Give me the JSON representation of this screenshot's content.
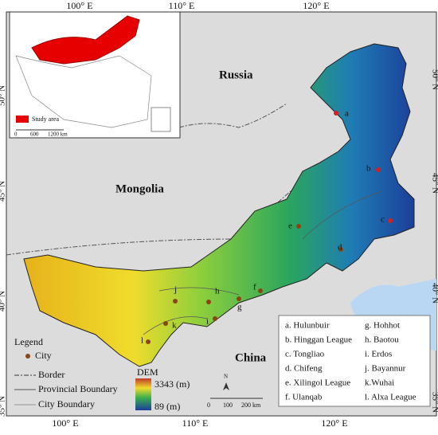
{
  "axes": {
    "top": [
      "100° E",
      "110° E",
      "120° E"
    ],
    "bottom": [
      "100° E",
      "110° E",
      "120° E"
    ],
    "left": [
      "50° N",
      "45° N",
      "40° N",
      "35° N"
    ],
    "right": [
      "50° N",
      "45° N",
      "40° N",
      "35° N"
    ]
  },
  "countries": [
    "Russia",
    "Mongolia",
    "China"
  ],
  "inset": {
    "legend": "Study area",
    "scale": [
      "0",
      "600",
      "1200 km"
    ]
  },
  "legend": {
    "title": "Legend",
    "city": "City",
    "border": "Border",
    "provincial": "Provincial Boundary",
    "city_boundary": "City Boundary"
  },
  "dem": {
    "title": "DEM",
    "high": "3343 (m)",
    "low": "89 (m)"
  },
  "scale": [
    "0",
    "100",
    "200 km"
  ],
  "north": "N",
  "points": [
    "a",
    "b",
    "c",
    "d",
    "e",
    "f",
    "g",
    "h",
    "i",
    "j",
    "k",
    "l"
  ],
  "cities": [
    "a. Hulunbuir",
    "b. Hinggan League",
    "c. Tongliao",
    "d. Chifeng",
    "e. Xilingol League",
    "f. Ulanqab",
    "g. Hohhot",
    "h. Baotou",
    "i. Erdos",
    "j. Bayannur",
    "k.Wuhai",
    "l. Alxa League"
  ]
}
